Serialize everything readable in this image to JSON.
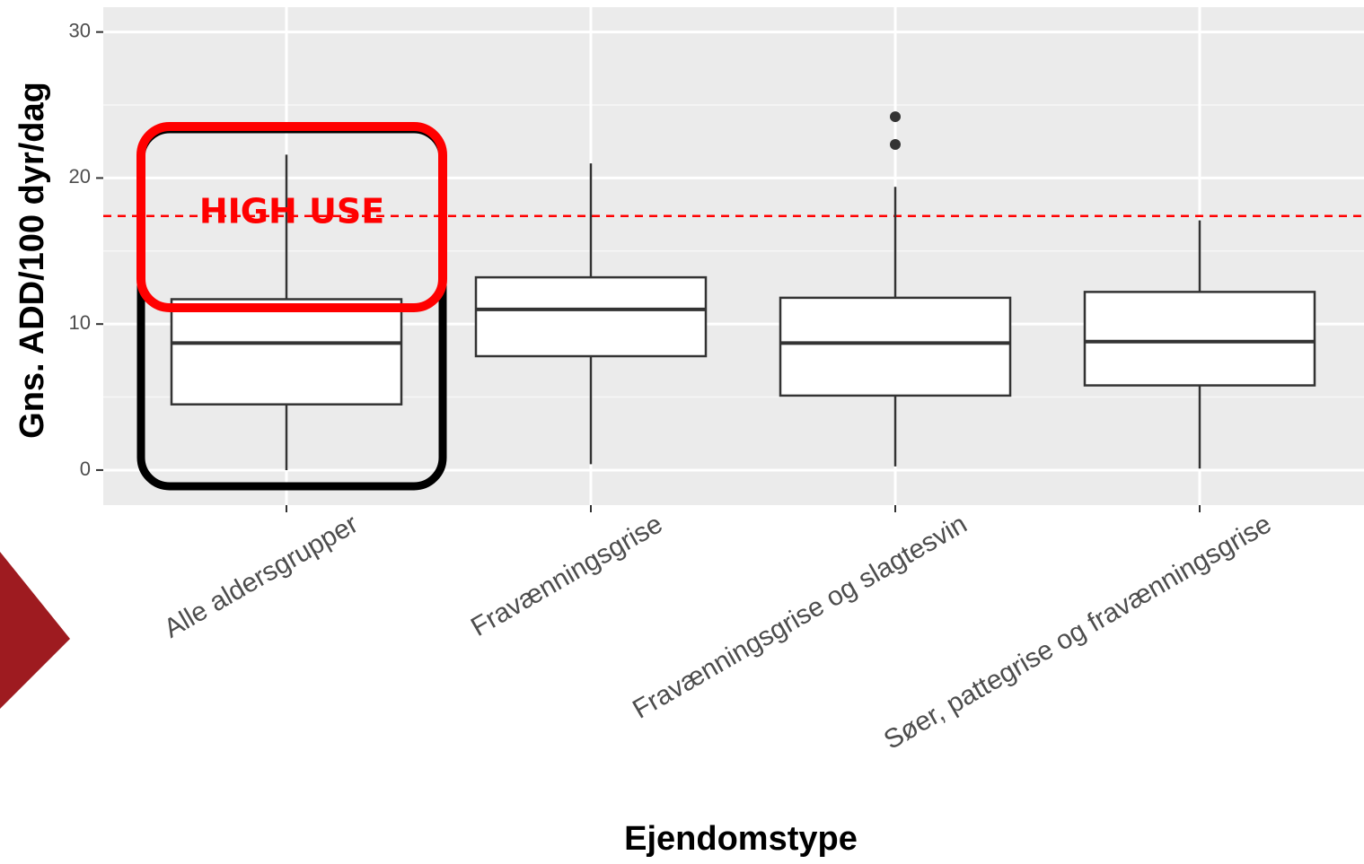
{
  "chart_data": {
    "type": "box",
    "x_label": "Ejendomstype",
    "y_label": "Gns. ADD/100 dyr/dag",
    "categories": [
      "Alle aldersgrupper",
      "Fravænningsgrise",
      "Fravænningsgrise og slagtesvin",
      "Søer, pattegrise og fravænningsgrise"
    ],
    "boxes": [
      {
        "low": 0,
        "q1": 4.5,
        "median": 8.7,
        "q3": 11.7,
        "high": 21.6
      },
      {
        "low": 0.4,
        "q1": 7.8,
        "median": 11.0,
        "q3": 13.2,
        "high": 21.0
      },
      {
        "low": 0.25,
        "q1": 5.1,
        "median": 8.7,
        "q3": 11.8,
        "high": 19.4,
        "outliers": [
          22.3,
          24.2
        ]
      },
      {
        "low": 0.1,
        "q1": 5.8,
        "median": 8.8,
        "q3": 12.2,
        "high": 17.1
      }
    ],
    "reference_line": {
      "value": 17.4,
      "color": "#ff0000"
    },
    "annotation": "HIGH USE",
    "ylim": [
      -2.4,
      31.7
    ],
    "yticks": [
      0,
      10,
      20,
      30
    ],
    "yminor": [
      5,
      15,
      25
    ],
    "grid": true
  }
}
